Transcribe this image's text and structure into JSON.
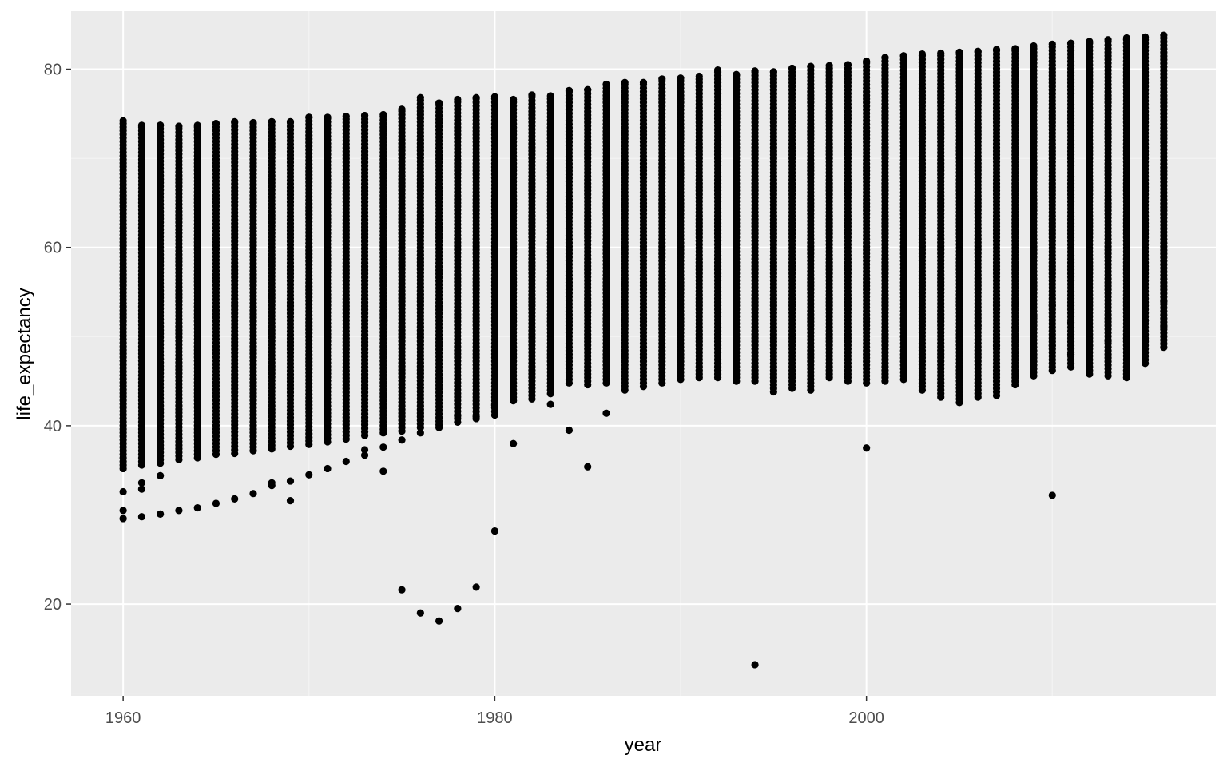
{
  "chart_data": {
    "type": "scatter",
    "title": "",
    "xlabel": "year",
    "ylabel": "life_expectancy",
    "xlim": [
      1957.2,
      2018.8
    ],
    "ylim": [
      9.7,
      86.5
    ],
    "x_ticks": [
      1960,
      1980,
      2000
    ],
    "y_ticks": [
      20,
      40,
      60,
      80
    ],
    "grid": true,
    "legend": "none",
    "colors": {
      "panel": "#ebebeb",
      "grid_major": "#ffffff",
      "grid_minor": "#f5f5f5",
      "point": "#000000"
    },
    "column_ranges": {
      "note_fields": [
        "year",
        "min",
        "max"
      ],
      "rows": [
        [
          1960,
          35.2,
          74.2
        ],
        [
          1961,
          35.6,
          73.7
        ],
        [
          1962,
          35.8,
          73.7
        ],
        [
          1963,
          36.2,
          73.6
        ],
        [
          1964,
          36.4,
          73.7
        ],
        [
          1965,
          36.8,
          73.9
        ],
        [
          1966,
          36.9,
          74.1
        ],
        [
          1967,
          37.2,
          74.0
        ],
        [
          1968,
          37.4,
          74.1
        ],
        [
          1969,
          37.7,
          74.1
        ],
        [
          1970,
          37.9,
          74.6
        ],
        [
          1971,
          38.2,
          74.6
        ],
        [
          1972,
          38.5,
          74.7
        ],
        [
          1973,
          38.9,
          74.8
        ],
        [
          1974,
          39.2,
          74.9
        ],
        [
          1975,
          39.4,
          75.5
        ],
        [
          1976,
          39.8,
          76.8
        ],
        [
          1977,
          40.1,
          76.2
        ],
        [
          1978,
          40.4,
          76.6
        ],
        [
          1979,
          40.8,
          76.8
        ],
        [
          1980,
          41.2,
          76.9
        ],
        [
          1981,
          42.8,
          76.6
        ],
        [
          1982,
          43.0,
          77.1
        ],
        [
          1983,
          43.6,
          77.0
        ],
        [
          1984,
          44.8,
          77.6
        ],
        [
          1985,
          44.6,
          77.7
        ],
        [
          1986,
          44.8,
          78.3
        ],
        [
          1987,
          44.0,
          78.5
        ],
        [
          1988,
          44.4,
          78.5
        ],
        [
          1989,
          44.8,
          78.9
        ],
        [
          1990,
          45.2,
          79.0
        ],
        [
          1991,
          45.4,
          79.2
        ],
        [
          1992,
          45.4,
          79.9
        ],
        [
          1993,
          45.0,
          79.4
        ],
        [
          1994,
          45.0,
          79.8
        ],
        [
          1995,
          43.8,
          79.7
        ],
        [
          1996,
          44.2,
          80.1
        ],
        [
          1997,
          44.0,
          80.3
        ],
        [
          1998,
          45.4,
          80.4
        ],
        [
          1999,
          45.0,
          80.5
        ],
        [
          2000,
          44.8,
          80.9
        ],
        [
          2001,
          45.0,
          81.3
        ],
        [
          2002,
          45.2,
          81.5
        ],
        [
          2003,
          44.0,
          81.7
        ],
        [
          2004,
          43.2,
          81.8
        ],
        [
          2005,
          42.6,
          81.9
        ],
        [
          2006,
          43.2,
          82.0
        ],
        [
          2007,
          43.4,
          82.2
        ],
        [
          2008,
          44.6,
          82.3
        ],
        [
          2009,
          45.6,
          82.6
        ],
        [
          2010,
          46.2,
          82.8
        ],
        [
          2011,
          46.6,
          82.9
        ],
        [
          2012,
          45.8,
          83.1
        ],
        [
          2013,
          45.6,
          83.3
        ],
        [
          2014,
          45.4,
          83.5
        ],
        [
          2015,
          47.0,
          83.6
        ],
        [
          2016,
          48.8,
          83.8
        ]
      ]
    },
    "outliers": [
      {
        "x": 1960,
        "y": 32.6
      },
      {
        "x": 1960,
        "y": 30.5
      },
      {
        "x": 1960,
        "y": 29.6
      },
      {
        "x": 1961,
        "y": 33.6
      },
      {
        "x": 1961,
        "y": 32.9
      },
      {
        "x": 1961,
        "y": 29.8
      },
      {
        "x": 1962,
        "y": 34.4
      },
      {
        "x": 1962,
        "y": 30.1
      },
      {
        "x": 1963,
        "y": 30.5
      },
      {
        "x": 1964,
        "y": 30.8
      },
      {
        "x": 1965,
        "y": 31.3
      },
      {
        "x": 1966,
        "y": 31.8
      },
      {
        "x": 1967,
        "y": 32.4
      },
      {
        "x": 1968,
        "y": 33.3
      },
      {
        "x": 1968,
        "y": 33.6
      },
      {
        "x": 1969,
        "y": 31.6
      },
      {
        "x": 1969,
        "y": 33.8
      },
      {
        "x": 1970,
        "y": 34.5
      },
      {
        "x": 1971,
        "y": 35.2
      },
      {
        "x": 1972,
        "y": 36.0
      },
      {
        "x": 1973,
        "y": 36.7
      },
      {
        "x": 1973,
        "y": 37.3
      },
      {
        "x": 1974,
        "y": 34.9
      },
      {
        "x": 1974,
        "y": 37.6
      },
      {
        "x": 1975,
        "y": 21.6
      },
      {
        "x": 1975,
        "y": 38.4
      },
      {
        "x": 1976,
        "y": 19.0
      },
      {
        "x": 1976,
        "y": 39.2
      },
      {
        "x": 1977,
        "y": 18.1
      },
      {
        "x": 1977,
        "y": 39.8
      },
      {
        "x": 1978,
        "y": 19.5
      },
      {
        "x": 1978,
        "y": 41.1
      },
      {
        "x": 1979,
        "y": 21.9
      },
      {
        "x": 1979,
        "y": 41.0
      },
      {
        "x": 1980,
        "y": 28.2
      },
      {
        "x": 1980,
        "y": 42.3
      },
      {
        "x": 1981,
        "y": 38.0
      },
      {
        "x": 1983,
        "y": 42.4
      },
      {
        "x": 1984,
        "y": 39.5
      },
      {
        "x": 1985,
        "y": 35.4
      },
      {
        "x": 1986,
        "y": 41.4
      },
      {
        "x": 1994,
        "y": 13.2
      },
      {
        "x": 2000,
        "y": 37.5
      },
      {
        "x": 2002,
        "y": 50.0
      },
      {
        "x": 2006,
        "y": 51.2
      },
      {
        "x": 2007,
        "y": 49.0
      },
      {
        "x": 2008,
        "y": 51.0
      },
      {
        "x": 2009,
        "y": 52.3
      },
      {
        "x": 2010,
        "y": 53.5
      },
      {
        "x": 2010,
        "y": 49.0
      },
      {
        "x": 2010,
        "y": 32.2
      },
      {
        "x": 2011,
        "y": 51.6
      },
      {
        "x": 2011,
        "y": 48.0
      },
      {
        "x": 2012,
        "y": 49.0
      },
      {
        "x": 2013,
        "y": 49.5
      },
      {
        "x": 2014,
        "y": 49.8
      },
      {
        "x": 2015,
        "y": 51.8
      },
      {
        "x": 2015,
        "y": 49.6
      },
      {
        "x": 2016,
        "y": 53.9
      },
      {
        "x": 2016,
        "y": 51.1
      }
    ]
  }
}
